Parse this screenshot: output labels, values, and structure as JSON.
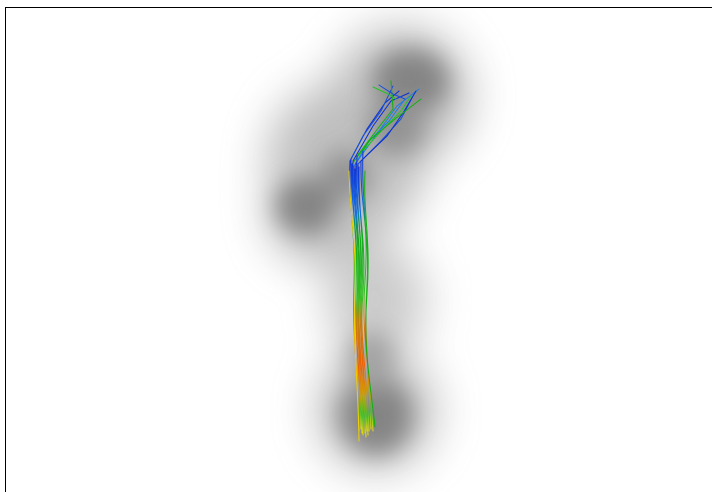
{
  "scene": {
    "description_visible_text": "",
    "background_color": "#ffffff",
    "frame_color": "#000000",
    "blob_color": "#808080",
    "tract_colors": [
      "#0b2fd6",
      "#1f7fe0",
      "#10b010",
      "#22c422",
      "#8fd020",
      "#f07a00",
      "#e64a10",
      "#f0d000"
    ]
  }
}
